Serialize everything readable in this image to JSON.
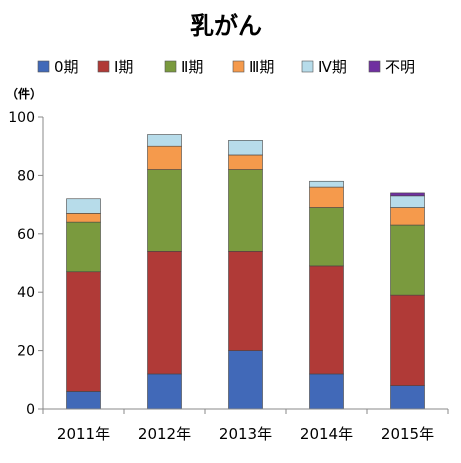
{
  "chart_data": {
    "type": "bar",
    "stacked": true,
    "title": "乳がん",
    "unit_label": "（件）",
    "categories": [
      "2011年",
      "2012年",
      "2013年",
      "2014年",
      "2015年"
    ],
    "ylim": [
      0,
      100
    ],
    "yticks": [
      0,
      20,
      40,
      60,
      80,
      100
    ],
    "grid": false,
    "legend_position": "top",
    "series": [
      {
        "name": "0期",
        "color": "#4169b8",
        "values": [
          6,
          12,
          20,
          12,
          8
        ]
      },
      {
        "name": "Ⅰ期",
        "color": "#b03a37",
        "values": [
          41,
          42,
          34,
          37,
          31
        ]
      },
      {
        "name": "Ⅱ期",
        "color": "#7a9a3e",
        "values": [
          17,
          28,
          28,
          20,
          24
        ]
      },
      {
        "name": "Ⅲ期",
        "color": "#f59a4c",
        "values": [
          3,
          8,
          5,
          7,
          6
        ]
      },
      {
        "name": "Ⅳ期",
        "color": "#b7dcea",
        "values": [
          5,
          4,
          5,
          2,
          4
        ]
      },
      {
        "name": "不明",
        "color": "#7030a0",
        "values": [
          0,
          0,
          0,
          0,
          1
        ]
      }
    ]
  }
}
